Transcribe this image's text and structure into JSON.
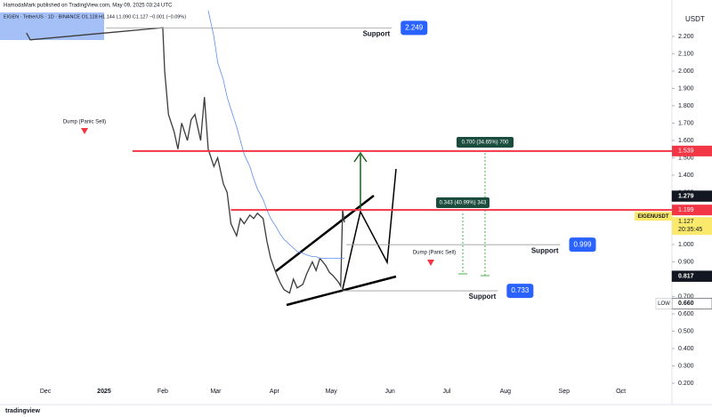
{
  "header": {
    "publisher": "HamodaMark published on TradingView.com, May 09, 2025 03:24 UTC",
    "symbol_line": "EIGEN · TetherUS · 1D · BINANCE  O1.128  H1.144  L1.090  C1.127  −0.001 (−0.09%)",
    "footer": "tradingview"
  },
  "chart_data": {
    "type": "line",
    "x": [
      14,
      16,
      86,
      87,
      89,
      92,
      94,
      96,
      99,
      101,
      103,
      106,
      108,
      110,
      113,
      115,
      118,
      120,
      122,
      125,
      127,
      129,
      132,
      134,
      136,
      139,
      141,
      143,
      146,
      148,
      150,
      153,
      155,
      157,
      160,
      162,
      165,
      167,
      169,
      172,
      174,
      176,
      179,
      180,
      181,
      182
    ],
    "series": [
      {
        "name": "EIGENUSDT",
        "color": "#3b3b3b",
        "values": [
          2.22,
          2.18,
          2.25,
          2.0,
          1.75,
          1.65,
          1.55,
          1.7,
          1.6,
          1.72,
          1.75,
          1.6,
          1.85,
          1.55,
          1.45,
          1.5,
          1.35,
          1.3,
          1.12,
          1.05,
          1.15,
          1.12,
          1.17,
          1.15,
          1.18,
          1.15,
          1.02,
          0.92,
          0.83,
          0.78,
          0.74,
          0.72,
          0.8,
          0.75,
          0.77,
          0.83,
          0.9,
          0.85,
          0.92,
          0.88,
          0.84,
          0.82,
          0.78,
          0.76,
          1.2,
          1.127
        ]
      },
      {
        "color": "#5b8def",
        "values": [
          null,
          null,
          null,
          null,
          null,
          null,
          null,
          null,
          null,
          null,
          null,
          null,
          null,
          2.35,
          2.2,
          2.05,
          1.95,
          1.85,
          1.78,
          1.68,
          1.6,
          1.52,
          1.45,
          1.38,
          1.32,
          1.26,
          1.2,
          1.15,
          1.1,
          1.06,
          1.03,
          1.0,
          0.98,
          0.96,
          0.95,
          0.94,
          0.93,
          0.93,
          0.92,
          0.92,
          0.92,
          0.92,
          0.92,
          0.92,
          0.92,
          0.92
        ]
      }
    ],
    "xlim": [
      0,
      355
    ],
    "xticks": [
      {
        "value": 24,
        "label": "Dec"
      },
      {
        "value": 55,
        "label": "2025"
      },
      {
        "value": 86,
        "label": "Feb"
      },
      {
        "value": 114,
        "label": "Mar"
      },
      {
        "value": 145,
        "label": "Apr"
      },
      {
        "value": 175,
        "label": "May"
      },
      {
        "value": 206,
        "label": "Jun"
      },
      {
        "value": 236,
        "label": "Jul"
      },
      {
        "value": 267,
        "label": "Aug"
      },
      {
        "value": 298,
        "label": "Sep"
      },
      {
        "value": 328,
        "label": "Oct"
      }
    ],
    "ylim": [
      0.154,
      2.338
    ],
    "ylabel": "USDT",
    "yticks": [
      {
        "value": 0.2,
        "label": "0.200"
      },
      {
        "value": 0.3,
        "label": "0.300"
      },
      {
        "value": 0.4,
        "label": "0.400"
      },
      {
        "value": 0.5,
        "label": "0.500"
      },
      {
        "value": 0.6,
        "label": "0.600"
      },
      {
        "value": 0.7,
        "label": "0.700"
      },
      {
        "value": 0.8,
        "label": "0.800"
      },
      {
        "value": 0.9,
        "label": "0.900"
      },
      {
        "value": 1,
        "label": "1.000"
      },
      {
        "value": 1.1,
        "label": "1.100"
      },
      {
        "value": 1.2,
        "label": "1.200"
      },
      {
        "value": 1.3,
        "label": "1.300"
      },
      {
        "value": 1.4,
        "label": "1.400"
      },
      {
        "value": 1.5,
        "label": "1.500"
      },
      {
        "value": 1.6,
        "label": "1.600"
      },
      {
        "value": 1.7,
        "label": "1.700"
      },
      {
        "value": 1.8,
        "label": "1.800"
      },
      {
        "value": 1.9,
        "label": "1.900"
      },
      {
        "value": 2,
        "label": "2.000"
      },
      {
        "value": 2.1,
        "label": "2.100"
      },
      {
        "value": 2.2,
        "label": "2.200"
      }
    ],
    "levels": [
      {
        "value": 1.539,
        "color": "#f23645",
        "from": 70,
        "label": "1.539"
      },
      {
        "value": 1.199,
        "color": "#f23645",
        "from": 122,
        "label": "1.199"
      },
      {
        "value": 2.249,
        "color": "#9e9e9e",
        "from": 56,
        "to": 207,
        "label": "2.249",
        "text": "Support"
      },
      {
        "value": 0.999,
        "color": "#9e9e9e",
        "from": 183,
        "to": 296,
        "label": "0.999",
        "text": "Support"
      },
      {
        "value": 0.733,
        "color": "#9e9e9e",
        "from": 181,
        "to": 263,
        "label": "0.733",
        "text": "Support"
      }
    ],
    "axis_labels": [
      {
        "value": 1.279,
        "label": "1.279",
        "color": "#131722"
      },
      {
        "value": 0.817,
        "label": "0.817",
        "color": "#131722"
      },
      {
        "value": 0.66,
        "label": "0.660",
        "tag": "LOW",
        "color": "#ffffff"
      }
    ],
    "last_price": {
      "value": 1.127,
      "label": "1.127",
      "symbol": "EIGENUSDT",
      "countdown": "20:35:45"
    },
    "annotations": [
      "Dump (Panic Sell)",
      "Dump (Panic Sell)",
      "0.700 (34.65%) 700",
      "0.343 (40.99%) 343"
    ]
  }
}
